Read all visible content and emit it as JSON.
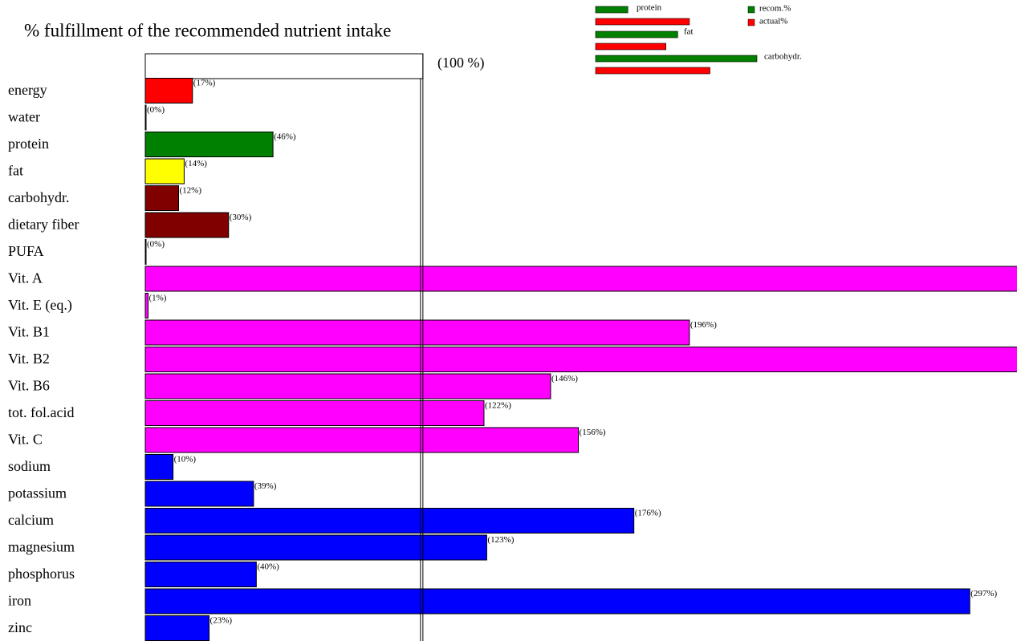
{
  "chart_data": [
    {
      "type": "hbar",
      "title": "% fulfillment of the recommended nutrient intake",
      "reference_label": "(100 %)",
      "reference_value": 100,
      "categories": [
        "energy",
        "water",
        "protein",
        "fat",
        "carbohydr.",
        "dietary fiber",
        "PUFA",
        "Vit. A",
        "Vit. E (eq.)",
        "Vit. B1",
        "Vit. B2",
        "Vit. B6",
        "tot. fol.acid",
        "Vit. C",
        "sodium",
        "potassium",
        "calcium",
        "magnesium",
        "phosphorus",
        "iron",
        "zinc"
      ],
      "values": [
        17,
        0,
        46,
        14,
        12,
        30,
        0,
        320,
        1,
        196,
        320,
        146,
        122,
        156,
        10,
        39,
        176,
        123,
        40,
        297,
        23
      ],
      "value_labels": [
        "(17%)",
        "(0%)",
        "(46%)",
        "(14%)",
        "(12%)",
        "(30%)",
        "(0%)",
        null,
        "(1%)",
        "(196%)",
        null,
        "(146%)",
        "(122%)",
        "(156%)",
        "(10%)",
        "(39%)",
        "(176%)",
        "(123%)",
        "(40%)",
        "(297%)",
        "(23%)"
      ],
      "colors": [
        "#ff0000",
        "#ff0000",
        "#008000",
        "#ffff00",
        "#800000",
        "#800000",
        "#800000",
        "#ff00ff",
        "#ff00ff",
        "#ff00ff",
        "#ff00ff",
        "#ff00ff",
        "#ff00ff",
        "#ff00ff",
        "#0000ff",
        "#0000ff",
        "#0000ff",
        "#0000ff",
        "#0000ff",
        "#0000ff",
        "#0000ff"
      ],
      "xlim": [
        0,
        314
      ]
    },
    {
      "type": "mini-hbar",
      "categories": [
        "protein",
        "fat",
        "carbohydr."
      ],
      "series": [
        {
          "name": "recom.%",
          "color": "#008000",
          "values": [
            11,
            28,
            55
          ]
        },
        {
          "name": "actual%",
          "color": "#ff0000",
          "values": [
            32,
            24,
            39
          ]
        }
      ],
      "xlim": [
        0,
        55
      ]
    }
  ]
}
